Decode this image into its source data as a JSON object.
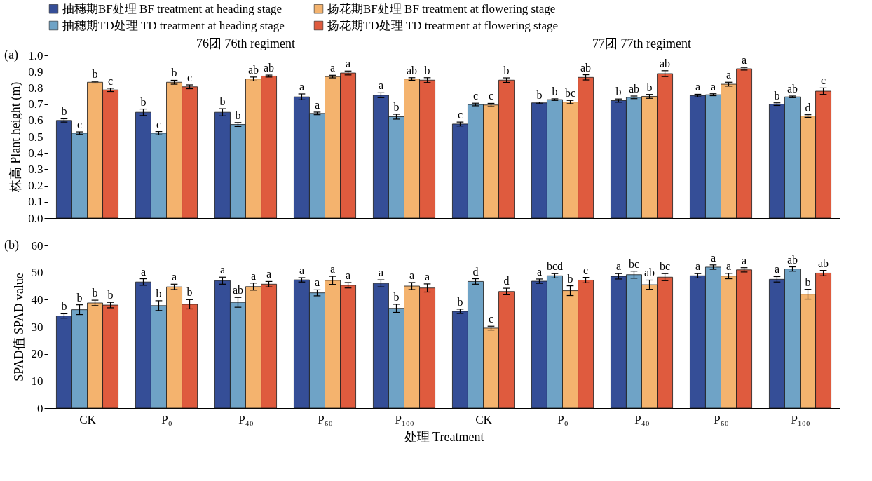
{
  "chart_data": [
    {
      "type": "bar",
      "ylabel": "株高 Plant height (m)",
      "annotations": [
        "(a)",
        "76团 76th regiment",
        "77团 77th regiment"
      ],
      "categories": [
        null,
        null,
        null,
        null,
        null,
        null,
        null,
        null,
        null,
        null
      ],
      "ylim": [
        0,
        1
      ],
      "yticks": [
        {
          "value": 0,
          "label": "0.0"
        },
        0.1,
        0.2,
        0.3,
        0.4,
        0.5,
        0.6,
        0.7,
        0.8,
        0.9,
        {
          "value": 1,
          "label": "1.0"
        }
      ],
      "grid": false,
      "legend": "top",
      "tick_labels": "y",
      "series": [
        {
          "name": "抽穗期BF处理 BF treatment at heading stage",
          "color": "#354e97",
          "values": [
            0.6,
            0.65,
            0.65,
            0.745,
            0.755,
            0.578,
            0.708,
            0.722,
            0.753,
            0.7
          ],
          "errors": [
            0.01,
            0.02,
            0.022,
            0.018,
            0.015,
            0.012,
            0.005,
            0.01,
            0.008,
            0.008
          ],
          "value_labels": [
            "b",
            "b",
            "b",
            "a",
            "a",
            "c",
            "b",
            "b",
            "a",
            "b"
          ]
        },
        {
          "name": "抽穗期TD处理 TD treatment at heading stage",
          "color": "#6fa3c6",
          "values": [
            0.522,
            0.522,
            0.575,
            0.643,
            0.623,
            0.698,
            0.728,
            0.742,
            0.758,
            0.745
          ],
          "errors": [
            0.008,
            0.01,
            0.012,
            0.008,
            0.015,
            0.008,
            0.005,
            0.008,
            0.006,
            0.005
          ],
          "value_labels": [
            "c",
            "c",
            "b",
            "a",
            "b",
            "c",
            "b",
            "ab",
            "a",
            "ab"
          ]
        },
        {
          "name": "扬花期BF处理 BF treatment at flowering stage",
          "color": "#f4b36e",
          "values": [
            0.835,
            0.835,
            0.855,
            0.87,
            0.855,
            0.695,
            0.713,
            0.748,
            0.823,
            0.627
          ],
          "errors": [
            0.005,
            0.012,
            0.012,
            0.008,
            0.008,
            0.01,
            0.01,
            0.012,
            0.012,
            0.008
          ],
          "value_labels": [
            "b",
            "b",
            "ab",
            "a",
            "ab",
            "c",
            "bc",
            "b",
            "a",
            "d"
          ]
        },
        {
          "name": "扬花期TD处理 TD treatment at flowering stage",
          "color": "#df5b3e",
          "values": [
            0.788,
            0.807,
            0.873,
            0.892,
            0.848,
            0.848,
            0.865,
            0.888,
            0.918,
            0.78
          ],
          "errors": [
            0.01,
            0.012,
            0.006,
            0.012,
            0.015,
            0.014,
            0.016,
            0.018,
            0.008,
            0.02
          ],
          "value_labels": [
            "c",
            "c",
            "ab",
            "a",
            "b",
            "b",
            "ab",
            "ab",
            "a",
            "c"
          ]
        }
      ]
    },
    {
      "type": "bar",
      "xlabel": "处理 Treatment",
      "ylabel": "SPAD值 SPAD value",
      "annotations": [
        "(b)"
      ],
      "categories": [
        "CK",
        "P₀",
        "P₄₀",
        "P₆₀",
        "P₁₀₀",
        "CK",
        "P₀",
        "P₄₀",
        "P₆₀",
        "P₁₀₀"
      ],
      "ylim": [
        0,
        60
      ],
      "yticks": [
        0,
        10,
        20,
        30,
        40,
        50,
        60
      ],
      "grid": false,
      "series": [
        {
          "color": "#354e97",
          "values": [
            34.0,
            46.5,
            47.0,
            47.3,
            46.0,
            35.7,
            46.8,
            48.6,
            48.8,
            47.5
          ],
          "errors": [
            0.8,
            1.2,
            1.3,
            0.8,
            1.3,
            0.8,
            0.8,
            1.0,
            0.8,
            1.0
          ],
          "value_labels": [
            "b",
            "a",
            "a",
            "a",
            "a",
            "b",
            "a",
            "a",
            "a",
            "a"
          ]
        },
        {
          "color": "#6fa3c6",
          "values": [
            36.3,
            37.8,
            39.0,
            42.5,
            36.8,
            46.7,
            48.8,
            49.2,
            52.0,
            51.3
          ],
          "errors": [
            1.8,
            1.8,
            1.8,
            1.1,
            1.5,
            1.0,
            0.8,
            1.3,
            0.8,
            0.8
          ],
          "value_labels": [
            "b",
            "b",
            "ab",
            "a",
            "b",
            "d",
            "bcd",
            "bc",
            "a",
            "ab"
          ]
        },
        {
          "color": "#f4b36e",
          "values": [
            38.8,
            44.7,
            44.8,
            47.1,
            45.0,
            29.5,
            43.3,
            45.5,
            48.7,
            42.0
          ],
          "errors": [
            1.0,
            1.0,
            1.3,
            1.5,
            1.3,
            0.7,
            1.8,
            1.7,
            1.0,
            1.8
          ],
          "value_labels": [
            "b",
            "a",
            "a",
            "a",
            "a",
            "c",
            "b",
            "ab",
            "a",
            "b"
          ]
        },
        {
          "color": "#df5b3e",
          "values": [
            38.0,
            38.3,
            45.7,
            45.3,
            44.3,
            43.0,
            47.2,
            48.3,
            51.0,
            49.8
          ],
          "errors": [
            1.0,
            1.7,
            1.0,
            1.0,
            1.5,
            1.2,
            1.0,
            1.3,
            0.8,
            1.0
          ],
          "value_labels": [
            "b",
            "b",
            "a",
            "a",
            "a",
            "d",
            "c",
            "bc",
            "a",
            "ab"
          ]
        }
      ]
    }
  ]
}
